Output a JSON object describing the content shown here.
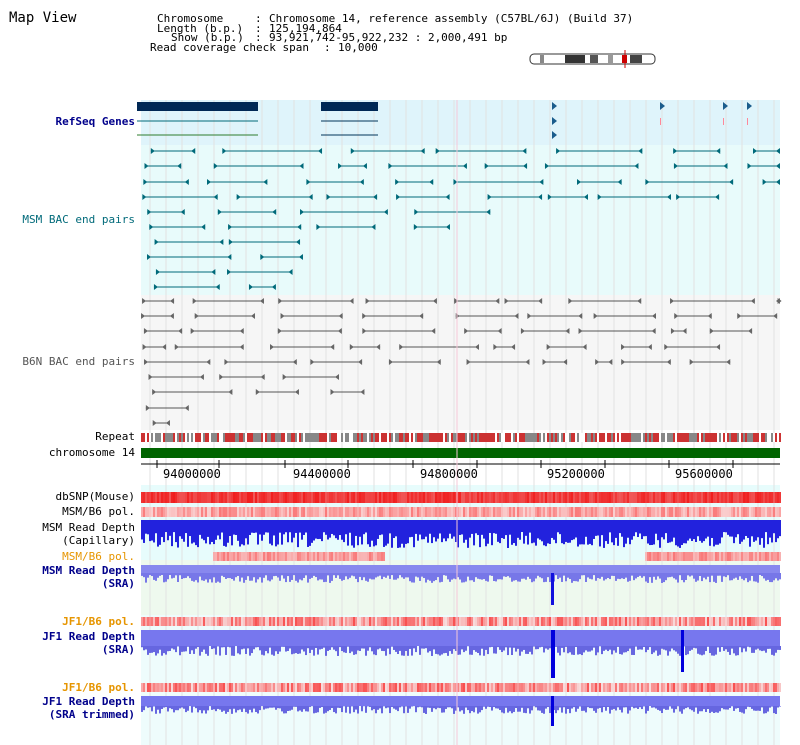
{
  "title": "Map View",
  "info": {
    "chromosome_key": "Chromosome",
    "chromosome_val": "Chromosome 14, reference assembly (C57BL/6J) (Build 37)",
    "length_key": "Length (b.p.)",
    "length_val": "125,194,864",
    "show_key": "Show (b.p.)",
    "show_val": "93,921,742-95,922,232 : 2,000,491 bp",
    "coverage_key": "Read coverage check span",
    "coverage_val": "10,000"
  },
  "tracks": {
    "refseq": "RefSeq Genes",
    "msm_bac": "MSM BAC end pairs",
    "b6n_bac": "B6N BAC end pairs",
    "repeat": "Repeat",
    "chromosome": "chromosome 14",
    "dbsnp": "dbSNP(Mouse)",
    "msm_b6_pol1": "MSM/B6 pol.",
    "msm_depth_cap_1": "MSM Read Depth",
    "msm_depth_cap_2": "(Capillary)",
    "msm_b6_pol2": "MSM/B6 pol.",
    "msm_depth_sra_1": "MSM Read Depth",
    "msm_depth_sra_2": "(SRA)",
    "jf1_b6_pol1": "JF1/B6 pol.",
    "jf1_depth_sra_1": "JF1 Read Depth",
    "jf1_depth_sra_2": "(SRA)",
    "jf1_b6_pol2": "JF1/B6 pol.",
    "jf1_depth_trim_1": "JF1 Read Depth",
    "jf1_depth_trim_2": "(SRA trimmed)"
  },
  "axis": {
    "ticks": [
      "94000000",
      "94400000",
      "94800000",
      "95200000",
      "95600000"
    ]
  },
  "colors": {
    "navy": "#00008b",
    "teal": "#006a7a",
    "gray": "#555555",
    "orange": "#e69500",
    "blue_depth": "#0000dd",
    "chrom_green": "#006400"
  }
}
